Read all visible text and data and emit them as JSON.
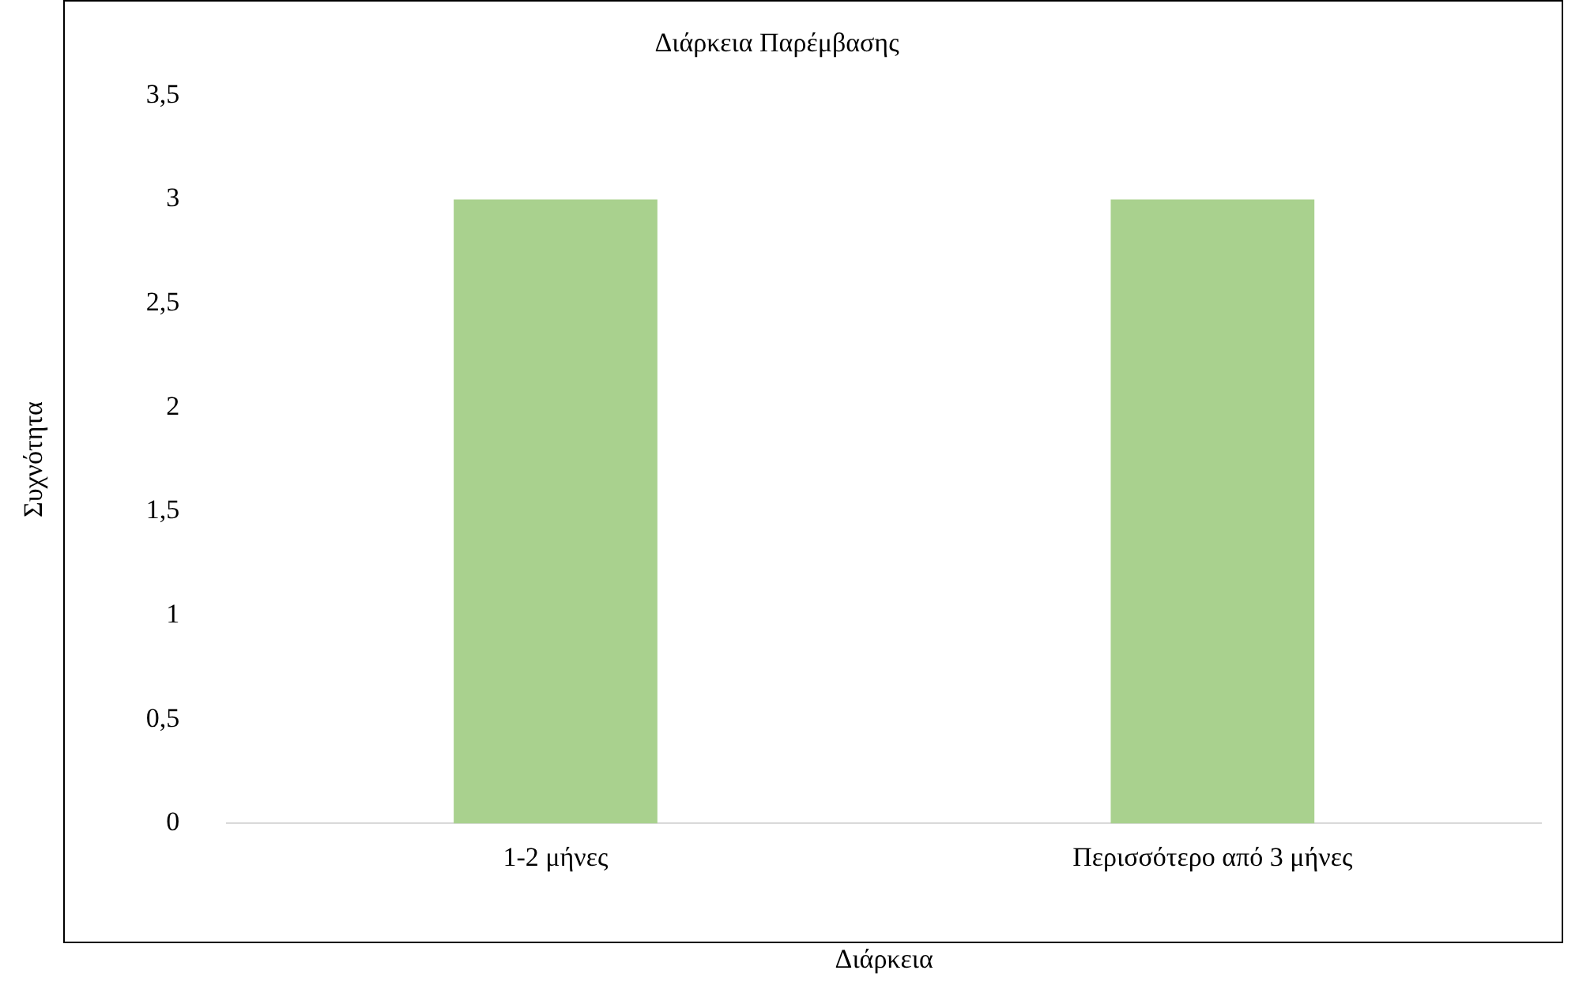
{
  "chart_data": {
    "type": "bar",
    "title": "Διάρκεια Παρέμβασης",
    "xlabel": "Διάρκεια",
    "ylabel": "Συχνότητα",
    "categories": [
      "1-2 μήνες",
      "Περισσότερο από 3 μήνες"
    ],
    "series": [
      {
        "color": "#a9d18e",
        "values": [
          3,
          3
        ]
      }
    ],
    "ylim": [
      0,
      3.5
    ],
    "yticks": [
      0,
      {
        "value": 0.5,
        "label": "0,5"
      },
      1,
      {
        "value": 1.5,
        "label": "1,5"
      },
      2,
      {
        "value": 2.5,
        "label": "2,5"
      },
      3,
      {
        "value": 3.5,
        "label": "3,5"
      }
    ]
  }
}
